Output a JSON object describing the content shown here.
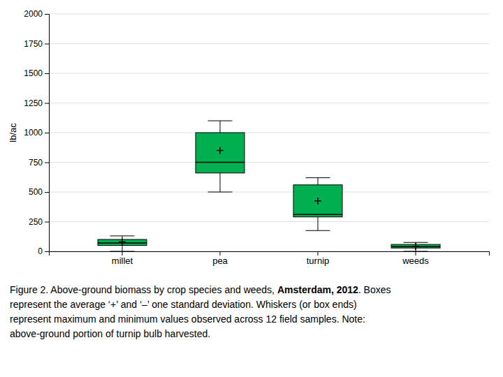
{
  "chart_data": {
    "type": "box",
    "categories": [
      "millet",
      "pea",
      "turnip",
      "weeds"
    ],
    "boxes": [
      {
        "q1": 50,
        "q3": 100,
        "med": 70,
        "mean": 80,
        "whislo": 0,
        "whishi": 130
      },
      {
        "q1": 660,
        "q3": 1000,
        "med": 750,
        "mean": 850,
        "whislo": 500,
        "whishi": 1100
      },
      {
        "q1": 290,
        "q3": 560,
        "med": 310,
        "mean": 425,
        "whislo": 175,
        "whishi": 620
      },
      {
        "q1": 28,
        "q3": 58,
        "med": 40,
        "mean": 43,
        "whislo": 0,
        "whishi": 75
      }
    ],
    "color": "#00b050",
    "marker": "plus",
    "y_label": "lb/ac",
    "ylim": [
      0,
      2000
    ],
    "yticks": [
      0,
      250,
      500,
      750,
      1000,
      1250,
      1500,
      1750,
      2000
    ],
    "grid": true,
    "caption": [
      [
        "Figure 2. Above-ground biomass by crop species and weeds, ",
        "Amsterdam, 2012",
        ". Boxes"
      ],
      "represent the average ‘+’ and ‘–’ one standard deviation. Whiskers (or box ends)",
      "represent maximum and minimum values observed across 12 field samples. Note:",
      "above-ground portion of turnip bulb harvested."
    ]
  }
}
